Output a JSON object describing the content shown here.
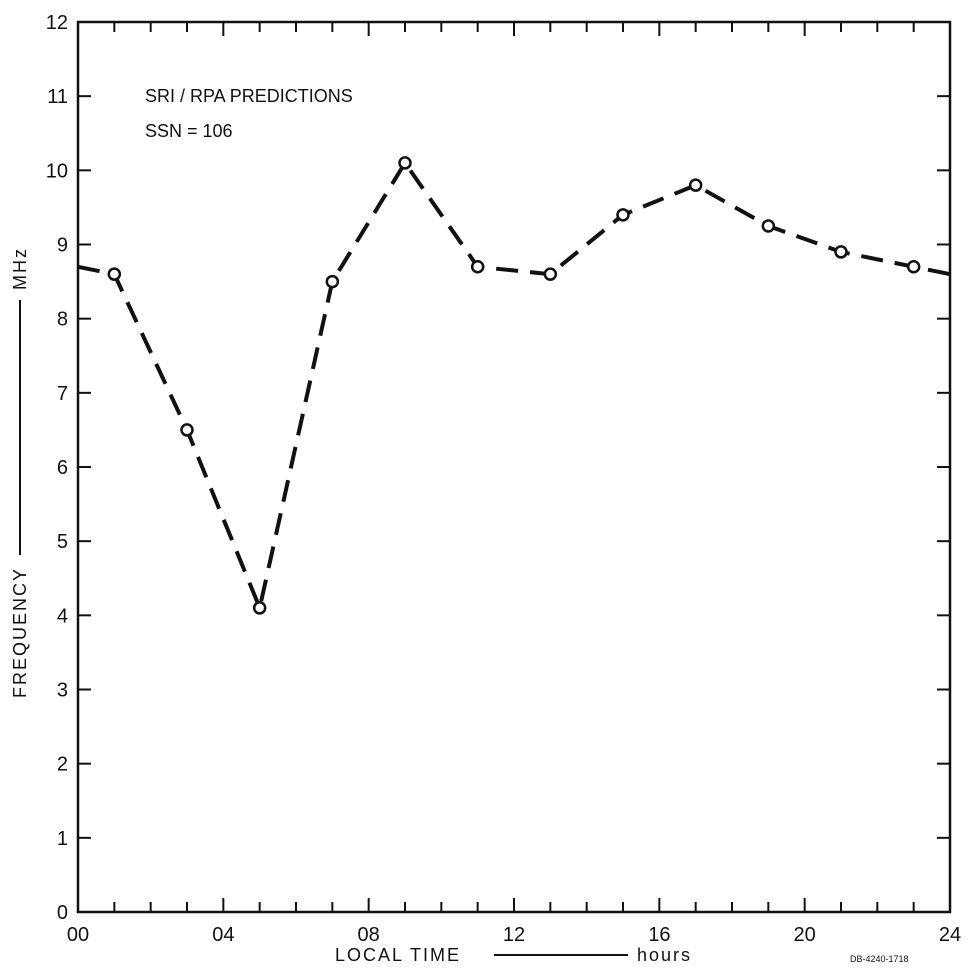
{
  "chart_data": {
    "type": "line",
    "title": "",
    "annotations": [
      "SRI / RPA PREDICTIONS",
      "SSN = 106"
    ],
    "xlabel": "LOCAL TIME",
    "xunit": "hours",
    "ylabel": "FREQUENCY",
    "yunit": "MHz",
    "xlim": [
      0,
      24
    ],
    "ylim": [
      0,
      12
    ],
    "x_ticks": [
      0,
      4,
      8,
      12,
      16,
      20,
      24
    ],
    "x_tick_labels": [
      "00",
      "04",
      "08",
      "12",
      "16",
      "20",
      "24"
    ],
    "x_minor_step": 1,
    "y_ticks": [
      0,
      1,
      2,
      3,
      4,
      5,
      6,
      7,
      8,
      9,
      10,
      11,
      12
    ],
    "y_tick_labels": [
      "0",
      "1",
      "2",
      "3",
      "4",
      "5",
      "6",
      "7",
      "8",
      "9",
      "10",
      "11",
      "12"
    ],
    "grid": false,
    "line_style": "dashed",
    "marker": "open-circle",
    "series": [
      {
        "x": [
          1,
          3,
          5,
          7,
          9,
          11,
          13,
          15,
          17,
          19,
          21,
          23
        ],
        "y": [
          8.6,
          6.5,
          4.1,
          8.5,
          10.1,
          8.7,
          8.6,
          9.4,
          9.8,
          9.25,
          8.9,
          8.7
        ]
      }
    ],
    "line_extension": {
      "start": {
        "x": 0,
        "y": 8.7
      },
      "end": {
        "x": 24,
        "y": 8.6
      }
    },
    "figure_id": "DB-4240-1718"
  }
}
